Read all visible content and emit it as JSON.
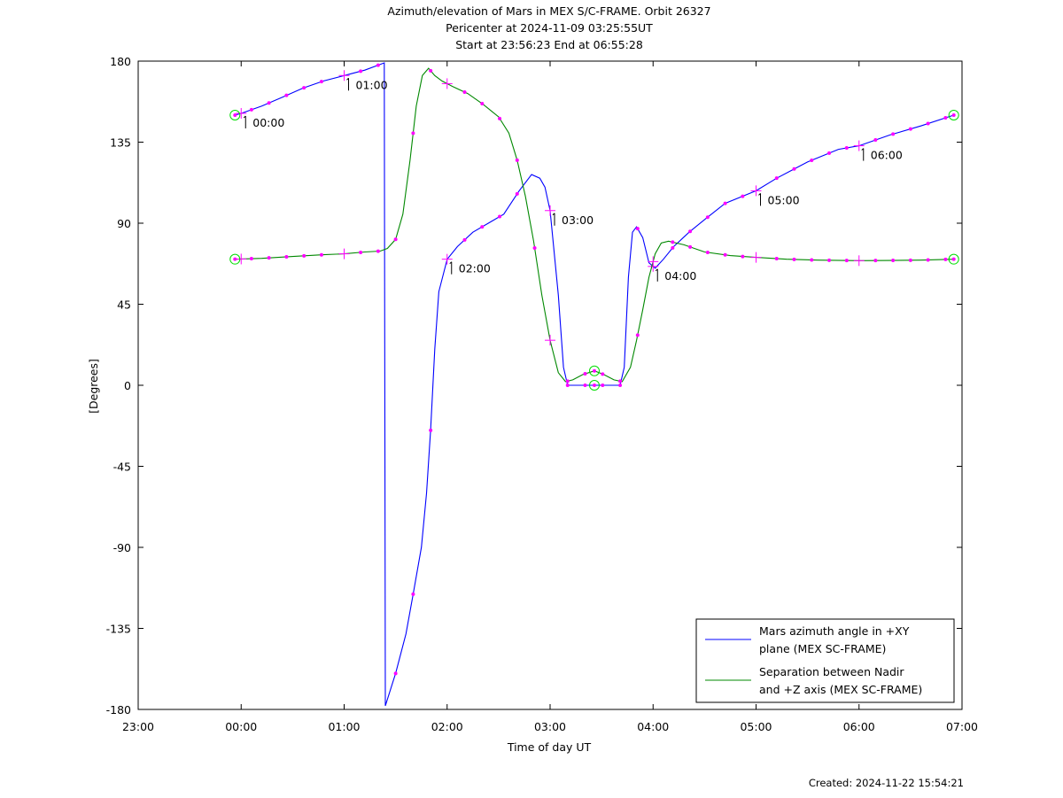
{
  "chart_data": {
    "type": "line",
    "title_lines": [
      "Azimuth/elevation of Mars in MEX S/C-FRAME.  Orbit 26327",
      "Pericenter at 2024-11-09 03:25:55UT",
      "Start at 23:56:23 End at 06:55:28"
    ],
    "xlabel": "Time of day UT",
    "ylabel": "[Degrees]",
    "xlim": [
      -1,
      7
    ],
    "ylim": [
      -180,
      180
    ],
    "x_ticks": [
      -1,
      0,
      1,
      2,
      3,
      4,
      5,
      6,
      7
    ],
    "x_tick_labels": [
      "23:00",
      "00:00",
      "01:00",
      "02:00",
      "03:00",
      "04:00",
      "05:00",
      "06:00",
      "07:00"
    ],
    "y_ticks": [
      180,
      135,
      90,
      45,
      0,
      -45,
      -90,
      -135,
      -180
    ],
    "y_tick_labels": [
      "180",
      "135",
      "90",
      "45",
      "0",
      "-45",
      "-90",
      "-135",
      "-180"
    ],
    "grid": false,
    "legend_placement": "bottom-right",
    "marker_color": "#ff00ff",
    "endpoint_marker_color": "#00dd00",
    "series": [
      {
        "name": "Mars azimuth angle in +XY plane (MEX SC-FRAME)",
        "legend_lines": [
          "Mars azimuth angle in +XY",
          "plane (MEX SC-FRAME)"
        ],
        "color": "#0000ff",
        "points": [
          [
            -0.06,
            150
          ],
          [
            0.0,
            151
          ],
          [
            0.2,
            155
          ],
          [
            0.4,
            160
          ],
          [
            0.6,
            165
          ],
          [
            0.8,
            169
          ],
          [
            1.0,
            172
          ],
          [
            1.2,
            175
          ],
          [
            1.39,
            179
          ],
          [
            1.4,
            -178
          ],
          [
            1.5,
            -160
          ],
          [
            1.6,
            -138
          ],
          [
            1.67,
            -116
          ],
          [
            1.75,
            -90
          ],
          [
            1.8,
            -60
          ],
          [
            1.84,
            -25
          ],
          [
            1.88,
            20
          ],
          [
            1.92,
            52
          ],
          [
            2.0,
            70
          ],
          [
            2.1,
            77
          ],
          [
            2.25,
            85
          ],
          [
            2.4,
            90
          ],
          [
            2.55,
            95
          ],
          [
            2.7,
            108
          ],
          [
            2.82,
            117
          ],
          [
            2.9,
            115
          ],
          [
            2.95,
            110
          ],
          [
            3.0,
            97
          ],
          [
            3.08,
            50
          ],
          [
            3.13,
            10
          ],
          [
            3.17,
            0
          ],
          [
            3.3,
            0
          ],
          [
            3.45,
            0
          ],
          [
            3.6,
            0
          ],
          [
            3.68,
            0
          ],
          [
            3.72,
            10
          ],
          [
            3.76,
            60
          ],
          [
            3.8,
            85
          ],
          [
            3.84,
            88
          ],
          [
            3.9,
            82
          ],
          [
            3.96,
            68
          ],
          [
            4.02,
            65
          ],
          [
            4.1,
            70
          ],
          [
            4.2,
            77
          ],
          [
            4.35,
            85
          ],
          [
            4.5,
            92
          ],
          [
            4.7,
            101
          ],
          [
            5.0,
            108
          ],
          [
            5.2,
            115
          ],
          [
            5.5,
            124
          ],
          [
            5.8,
            131
          ],
          [
            6.0,
            133
          ],
          [
            6.3,
            139
          ],
          [
            6.6,
            144
          ],
          [
            6.92,
            150
          ]
        ],
        "dots_x": [
          0.1,
          0.27,
          0.44,
          0.61,
          0.78,
          1.16,
          1.33,
          1.5,
          1.67,
          1.84,
          2.17,
          2.34,
          2.51,
          2.68,
          3.17,
          3.34,
          3.51,
          3.68,
          3.85,
          4.19,
          4.36,
          4.53,
          4.7,
          4.87,
          5.2,
          5.37,
          5.54,
          5.71,
          5.88,
          6.16,
          6.33,
          6.5,
          6.67,
          6.84
        ],
        "hour_marks": [
          {
            "x": 0.0,
            "label": "00:00"
          },
          {
            "x": 1.0,
            "label": "01:00"
          },
          {
            "x": 2.0,
            "label": "02:00"
          },
          {
            "x": 3.0,
            "label": "03:00"
          },
          {
            "x": 4.0,
            "label": "04:00"
          },
          {
            "x": 5.0,
            "label": "05:00"
          },
          {
            "x": 6.0,
            "label": "06:00"
          }
        ],
        "endpoints_x": [
          -0.06,
          3.43,
          6.92
        ]
      },
      {
        "name": "Separation between Nadir and +Z axis (MEX SC-FRAME)",
        "legend_lines": [
          "Separation between Nadir",
          "and +Z axis (MEX SC-FRAME)"
        ],
        "color": "#008800",
        "points": [
          [
            -0.06,
            70
          ],
          [
            0.2,
            70.5
          ],
          [
            0.5,
            71.5
          ],
          [
            0.8,
            72.5
          ],
          [
            1.0,
            73
          ],
          [
            1.2,
            74
          ],
          [
            1.35,
            74.5
          ],
          [
            1.42,
            76
          ],
          [
            1.5,
            81
          ],
          [
            1.57,
            95
          ],
          [
            1.64,
            125
          ],
          [
            1.7,
            155
          ],
          [
            1.76,
            172
          ],
          [
            1.82,
            176
          ],
          [
            1.88,
            172
          ],
          [
            1.95,
            169
          ],
          [
            2.05,
            166
          ],
          [
            2.2,
            162
          ],
          [
            2.35,
            156
          ],
          [
            2.5,
            149
          ],
          [
            2.6,
            140
          ],
          [
            2.68,
            125
          ],
          [
            2.76,
            105
          ],
          [
            2.84,
            80
          ],
          [
            2.92,
            50
          ],
          [
            3.0,
            25
          ],
          [
            3.08,
            7
          ],
          [
            3.15,
            2
          ],
          [
            3.22,
            3
          ],
          [
            3.32,
            6
          ],
          [
            3.43,
            8
          ],
          [
            3.52,
            6
          ],
          [
            3.62,
            3
          ],
          [
            3.7,
            2
          ],
          [
            3.78,
            10
          ],
          [
            3.84,
            25
          ],
          [
            3.9,
            42
          ],
          [
            3.96,
            60
          ],
          [
            4.02,
            73
          ],
          [
            4.08,
            79
          ],
          [
            4.15,
            80
          ],
          [
            4.3,
            78
          ],
          [
            4.5,
            74
          ],
          [
            4.75,
            72
          ],
          [
            5.0,
            71
          ],
          [
            5.3,
            70
          ],
          [
            5.6,
            69.5
          ],
          [
            6.0,
            69.2
          ],
          [
            6.3,
            69.3
          ],
          [
            6.6,
            69.5
          ],
          [
            6.92,
            70
          ]
        ],
        "dots_x": [
          0.1,
          0.27,
          0.44,
          0.61,
          0.78,
          1.16,
          1.33,
          1.5,
          1.67,
          1.84,
          2.17,
          2.34,
          2.51,
          2.68,
          2.85,
          3.17,
          3.34,
          3.51,
          3.68,
          3.85,
          4.19,
          4.36,
          4.53,
          4.7,
          4.87,
          5.2,
          5.37,
          5.54,
          5.71,
          5.88,
          6.16,
          6.33,
          6.5,
          6.67,
          6.84
        ],
        "hour_marks_x": [
          0,
          1,
          2,
          3,
          4,
          5,
          6
        ],
        "endpoints_x": [
          -0.06,
          3.43,
          6.92
        ]
      }
    ]
  },
  "footer": {
    "created": "Created: 2024-11-22 15:54:21"
  }
}
